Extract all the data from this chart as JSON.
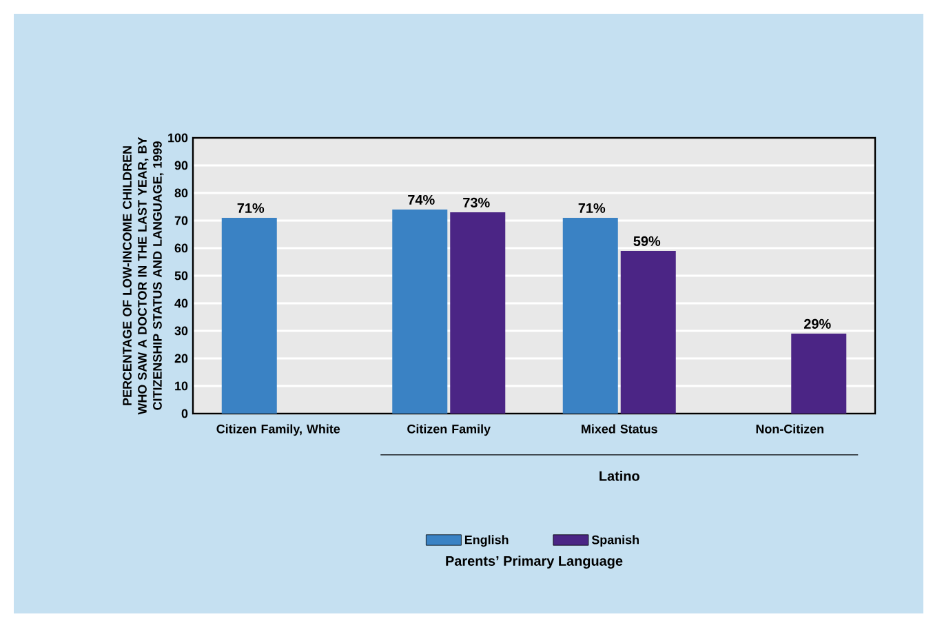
{
  "chart_data": {
    "type": "bar",
    "ylabel": "PERCENTAGE OF LOW-INCOME CHILDREN WHO SAW A DOCTOR IN THE LAST YEAR, BY CITIZENSHIP STATUS AND LANGUAGE, 1999",
    "categories": [
      "Citizen Family, White",
      "Citizen Family",
      "Mixed Status",
      "Non-Citizen"
    ],
    "series": [
      {
        "name": "English",
        "color": "#3a82c4",
        "values": [
          71,
          74,
          71,
          null
        ],
        "value_labels": [
          "71%",
          "74%",
          "71%",
          null
        ]
      },
      {
        "name": "Spanish",
        "color": "#4b2585",
        "values": [
          null,
          73,
          59,
          29
        ],
        "value_labels": [
          null,
          "73%",
          "59%",
          "29%"
        ]
      }
    ],
    "ylim": [
      0,
      100
    ],
    "yticks": [
      0,
      10,
      20,
      30,
      40,
      50,
      60,
      70,
      80,
      90,
      100
    ],
    "grid": "y",
    "legend": "bottom",
    "legend_title": "Parents’ Primary Language",
    "annotations": [
      "Latino"
    ]
  }
}
